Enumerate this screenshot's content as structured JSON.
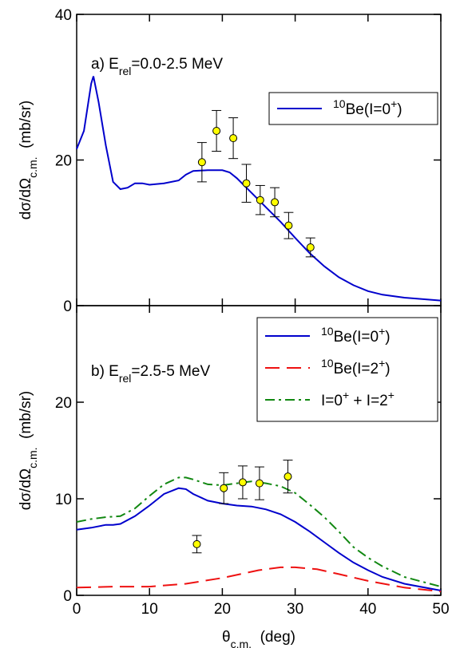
{
  "chart_data": [
    {
      "type": "line",
      "annotation": [
        {
          "text": "a) E"
        },
        {
          "text": "rel",
          "shift": "sub"
        },
        {
          "text": "=0.0-2.5 MeV"
        }
      ],
      "ylabel": [
        {
          "text": "dσ/dΩ"
        },
        {
          "text": "c.m.",
          "shift": "sub"
        },
        {
          "text": "  (mb/sr)"
        }
      ],
      "xlim": [
        0,
        50
      ],
      "xticks": [
        0,
        10,
        20,
        30,
        40,
        50
      ],
      "xtick_labels": false,
      "ylim": [
        0,
        40
      ],
      "yticks": [
        0,
        20,
        40
      ],
      "legend": "upper right",
      "series": [
        {
          "name": [
            {
              "text": "10",
              "shift": "super"
            },
            {
              "text": "Be(I=0"
            },
            {
              "text": "+",
              "shift": "super"
            },
            {
              "text": ")"
            }
          ],
          "color": "#0000cc",
          "dash": "solid",
          "x": [
            0,
            1,
            2,
            2.3,
            3,
            4,
            5,
            6,
            7,
            8,
            9,
            10,
            12,
            14,
            15,
            16,
            18,
            20,
            21,
            22,
            24,
            26,
            28,
            30,
            32,
            34,
            36,
            38,
            40,
            42,
            45,
            50
          ],
          "values": [
            21.5,
            24,
            30.5,
            31.5,
            28,
            22,
            17,
            16,
            16.2,
            16.8,
            16.8,
            16.6,
            16.8,
            17.2,
            18,
            18.5,
            18.6,
            18.6,
            18.3,
            17.5,
            15.5,
            13.5,
            11.5,
            9.3,
            7.2,
            5.4,
            3.9,
            2.8,
            2,
            1.5,
            1.1,
            0.7
          ]
        }
      ],
      "points": {
        "color": "#ffff00",
        "x": [
          17.2,
          19.2,
          21.5,
          23.3,
          25.2,
          27.2,
          29.1,
          32.1
        ],
        "values": [
          19.7,
          24,
          23,
          16.8,
          14.5,
          14.2,
          11,
          8
        ],
        "errors": [
          2.7,
          2.8,
          2.8,
          2.6,
          2,
          2,
          1.8,
          1.3
        ]
      }
    },
    {
      "type": "line",
      "annotation": [
        {
          "text": "b) E"
        },
        {
          "text": "rel",
          "shift": "sub"
        },
        {
          "text": "=2.5-5 MeV"
        }
      ],
      "ylabel": [
        {
          "text": "dσ/dΩ"
        },
        {
          "text": "c.m.",
          "shift": "sub"
        },
        {
          "text": "  (mb/sr)"
        }
      ],
      "xlabel": [
        {
          "text": "θ"
        },
        {
          "text": "c.m.",
          "shift": "sub"
        },
        {
          "text": "  (deg)"
        }
      ],
      "xlim": [
        0,
        50
      ],
      "xticks": [
        0,
        10,
        20,
        30,
        40,
        50
      ],
      "xtick_labels": true,
      "ylim": [
        0,
        30
      ],
      "yticks": [
        0,
        10,
        20
      ],
      "legend": "upper right",
      "series": [
        {
          "name": [
            {
              "text": "10",
              "shift": "super"
            },
            {
              "text": "Be(I=0"
            },
            {
              "text": "+",
              "shift": "super"
            },
            {
              "text": ")"
            }
          ],
          "color": "#0000cc",
          "dash": "solid",
          "x": [
            0,
            2,
            4,
            5,
            6,
            8,
            10,
            12,
            14,
            15,
            16,
            18,
            20,
            22,
            24,
            26,
            28,
            30,
            32,
            34,
            36,
            38,
            40,
            42,
            45,
            50
          ],
          "values": [
            6.8,
            7,
            7.3,
            7.3,
            7.4,
            8.2,
            9.3,
            10.5,
            11.1,
            11,
            10.5,
            9.8,
            9.5,
            9.3,
            9.2,
            8.9,
            8.4,
            7.6,
            6.6,
            5.5,
            4.4,
            3.4,
            2.6,
            1.9,
            1.2,
            0.5
          ]
        },
        {
          "name": [
            {
              "text": "10",
              "shift": "super"
            },
            {
              "text": "Be(I=2"
            },
            {
              "text": "+",
              "shift": "super"
            },
            {
              "text": ")"
            }
          ],
          "color": "#ee1111",
          "dash": "dashed",
          "x": [
            0,
            5,
            10,
            15,
            20,
            25,
            28,
            30,
            33,
            36,
            40,
            45,
            50
          ],
          "values": [
            0.8,
            0.9,
            0.9,
            1.2,
            1.8,
            2.6,
            2.9,
            2.9,
            2.7,
            2.2,
            1.5,
            0.8,
            0.4
          ]
        },
        {
          "name": [
            {
              "text": "I=0"
            },
            {
              "text": "+",
              "shift": "super"
            },
            {
              "text": " + I=2"
            },
            {
              "text": "+",
              "shift": "super"
            }
          ],
          "color": "#118811",
          "dash": "dashdot",
          "x": [
            0,
            2,
            4,
            6,
            8,
            10,
            12,
            14,
            15,
            16,
            18,
            20,
            22,
            24,
            26,
            28,
            30,
            32,
            34,
            36,
            38,
            40,
            42,
            45,
            50
          ],
          "values": [
            7.6,
            7.9,
            8.1,
            8.2,
            9,
            10.3,
            11.5,
            12.2,
            12.2,
            12,
            11.5,
            11.4,
            11.6,
            11.8,
            11.6,
            11.3,
            10.6,
            9.4,
            8.1,
            6.6,
            5,
            3.9,
            3,
            1.9,
            0.9
          ]
        }
      ],
      "points": {
        "color": "#ffff00",
        "x": [
          16.5,
          20.2,
          22.8,
          25.1,
          29
        ],
        "values": [
          5.3,
          11.1,
          11.7,
          11.6,
          12.3
        ],
        "errors": [
          0.9,
          1.6,
          1.7,
          1.7,
          1.7
        ]
      }
    }
  ]
}
